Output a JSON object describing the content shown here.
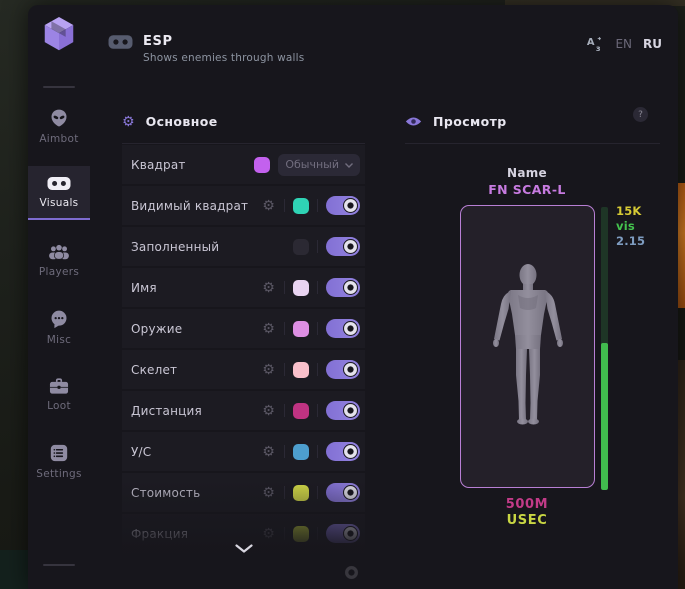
{
  "header": {
    "title": "ESP",
    "subtitle": "Shows enemies through walls",
    "lang_en": "EN",
    "lang_ru": "RU"
  },
  "sidebar": {
    "items": [
      {
        "label": "Aimbot",
        "icon": "alien",
        "active": false
      },
      {
        "label": "Visuals",
        "icon": "goggles",
        "active": true
      },
      {
        "label": "Players",
        "icon": "users",
        "active": false
      },
      {
        "label": "Misc",
        "icon": "chat",
        "active": false
      },
      {
        "label": "Loot",
        "icon": "briefcase",
        "active": false
      },
      {
        "label": "Settings",
        "icon": "list",
        "active": false
      }
    ]
  },
  "main": {
    "section_title": "Основное",
    "rows": [
      {
        "label": "Квадрат",
        "gear": false,
        "color": "#c361ee",
        "control": "dropdown",
        "dropdown_value": "Обычный"
      },
      {
        "label": "Видимый квадрат",
        "gear": true,
        "color": "#2fd3b5",
        "control": "toggle",
        "on": true
      },
      {
        "label": "Заполненный",
        "gear": false,
        "color": "#2b2933",
        "control": "toggle",
        "on": true
      },
      {
        "label": "Имя",
        "gear": true,
        "color": "#e9d4f1",
        "control": "toggle",
        "on": true
      },
      {
        "label": "Оружие",
        "gear": true,
        "color": "#dd8fe3",
        "control": "toggle",
        "on": true
      },
      {
        "label": "Скелет",
        "gear": true,
        "color": "#f9c0cb",
        "control": "toggle",
        "on": true
      },
      {
        "label": "Дистанция",
        "gear": true,
        "color": "#bf3382",
        "control": "toggle",
        "on": true
      },
      {
        "label": "У/С",
        "gear": true,
        "color": "#4d9ece",
        "control": "toggle",
        "on": true
      },
      {
        "label": "Стоимость",
        "gear": true,
        "color": "#d5dc48",
        "control": "toggle",
        "on": true
      },
      {
        "label": "Фракция",
        "gear": true,
        "color": "#c2d13c",
        "control": "toggle",
        "on": true
      }
    ]
  },
  "preview": {
    "section_title": "Просмотр",
    "help_label": "?",
    "name_label": "Name",
    "weapon_name": "FN SCAR-L",
    "price_label": "15K",
    "visibility_label": "vis",
    "distance_label": "2.15",
    "money_label": "500M",
    "faction_label": "USEC",
    "health_percent": 52,
    "colors": {
      "weapon": "#c77be0",
      "price": "#d6ca35",
      "visibility": "#44c24e",
      "distance": "#7e9cc0",
      "money": "#c23b88",
      "faction": "#c9d643",
      "health_fill": "#41bb4e"
    }
  }
}
